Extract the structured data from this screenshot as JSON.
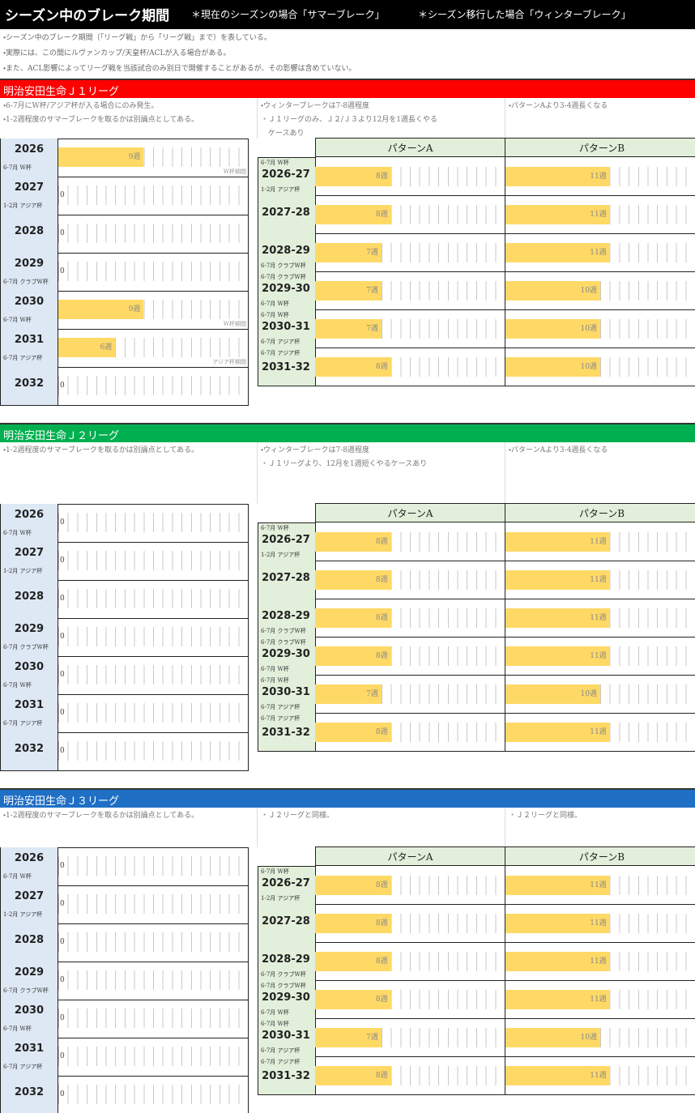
{
  "header": {
    "title": "シーズン中のブレーク期間",
    "notes": [
      "＊現在のシーズンの場合「サマーブレーク」",
      "＊シーズン移行した場合「ウィンターブレーク」"
    ]
  },
  "intro": [
    "・シーズン中のブレーク期間（「リーグ戦」から「リーグ戦」まで）を表している。",
    "・実際には、この間にルヴァンカップ/天皇杯/ACLが入る場合がある。",
    "・また、ACL影響によってリーグ戦を当該試合のみ別日で開催することがあるが、その影響は含めていない。"
  ],
  "sections": [
    {
      "title": "明治安田生命Ｊ１リーグ",
      "notes_left": [
        "・6-7月にW杯/アジア杯が入る場合にのみ発生。",
        "・1-2週程度のサマーブレークを取るかは別論点としてある。"
      ],
      "notes_mid": [
        "・ウィンターブレークは7-8週程度",
        "・Ｊ１リーグのみ、Ｊ２/Ｊ３より12月を1週長くやる",
        "　ケースあり"
      ],
      "notes_right": [
        "・パターンAより3-4週長くなる"
      ],
      "summer": [
        {
          "year": "2026",
          "sub": "6-7月 W杯",
          "value": 9,
          "value_label": "9週",
          "below": "W杯期間"
        },
        {
          "year": "2027",
          "sub": "1-2月 アジア杯",
          "value": 0
        },
        {
          "year": "2028",
          "value": 0
        },
        {
          "year": "2029",
          "sub": "6-7月 クラブW杯",
          "value": 0
        },
        {
          "year": "2030",
          "sub": "6-7月 W杯",
          "value": 9,
          "value_label": "9週",
          "below": "W杯期間"
        },
        {
          "year": "2031",
          "sub": "6-7月 アジア杯",
          "value": 6,
          "value_label": "6週",
          "below": "アジア杯期間"
        },
        {
          "year": "2032",
          "value": 0
        }
      ],
      "winter": {
        "headers": [
          "パターンA",
          "パターンB"
        ],
        "rows": [
          {
            "top": "6-7月 W杯",
            "season": "2026-27",
            "sub": "1-2月 アジア杯",
            "a": 8,
            "a_label": "8週",
            "b": 11,
            "b_label": "11週"
          },
          {
            "season": "2027-28",
            "a": 8,
            "a_label": "8週",
            "b": 11,
            "b_label": "11週"
          },
          {
            "season": "2028-29",
            "sub": "6-7月 クラブW杯",
            "a": 7,
            "a_label": "7週",
            "b": 11,
            "b_label": "11週"
          },
          {
            "top": "6-7月 クラブW杯",
            "season": "2029-30",
            "sub": "6-7月 W杯",
            "a": 7,
            "a_label": "7週",
            "b": 10,
            "b_label": "10週"
          },
          {
            "top": "6-7月 W杯",
            "season": "2030-31",
            "sub": "6-7月 アジア杯",
            "a": 7,
            "a_label": "7週",
            "b": 10,
            "b_label": "10週"
          },
          {
            "top": "6-7月 アジア杯",
            "season": "2031-32",
            "a": 8,
            "a_label": "8週",
            "b": 10,
            "b_label": "10週"
          }
        ]
      }
    },
    {
      "title": "明治安田生命Ｊ２リーグ",
      "notes_left": [
        "・1-2週程度のサマーブレークを取るかは別論点としてある。"
      ],
      "notes_mid": [
        "・ウィンターブレークは7-8週程度",
        "・Ｊ１リーグより、12月を1週短くやるケースあり"
      ],
      "notes_right": [
        "・パターンAより3-4週長くなる"
      ],
      "summer": [
        {
          "year": "2026",
          "sub": "6-7月 W杯",
          "value": 0
        },
        {
          "year": "2027",
          "sub": "1-2月 アジア杯",
          "value": 0
        },
        {
          "year": "2028",
          "value": 0
        },
        {
          "year": "2029",
          "sub": "6-7月 クラブW杯",
          "value": 0
        },
        {
          "year": "2030",
          "sub": "6-7月 W杯",
          "value": 0
        },
        {
          "year": "2031",
          "sub": "6-7月 アジア杯",
          "value": 0
        },
        {
          "year": "2032",
          "value": 0
        }
      ],
      "winter": {
        "headers": [
          "パターンA",
          "パターンB"
        ],
        "rows": [
          {
            "top": "6-7月 W杯",
            "season": "2026-27",
            "sub": "1-2月 アジア杯",
            "a": 8,
            "a_label": "8週",
            "b": 11,
            "b_label": "11週"
          },
          {
            "season": "2027-28",
            "a": 8,
            "a_label": "8週",
            "b": 11,
            "b_label": "11週"
          },
          {
            "season": "2028-29",
            "sub": "6-7月 クラブW杯",
            "a": 8,
            "a_label": "8週",
            "b": 11,
            "b_label": "11週"
          },
          {
            "top": "6-7月 クラブW杯",
            "season": "2029-30",
            "sub": "6-7月 W杯",
            "a": 8,
            "a_label": "8週",
            "b": 11,
            "b_label": "11週"
          },
          {
            "top": "6-7月 W杯",
            "season": "2030-31",
            "sub": "6-7月 アジア杯",
            "a": 7,
            "a_label": "7週",
            "b": 10,
            "b_label": "10週"
          },
          {
            "top": "6-7月 アジア杯",
            "season": "2031-32",
            "a": 8,
            "a_label": "8週",
            "b": 11,
            "b_label": "11週"
          }
        ]
      }
    },
    {
      "title": "明治安田生命Ｊ３リーグ",
      "notes_left": [
        "・1-2週程度のサマーブレークを取るかは別論点としてある。"
      ],
      "notes_mid": [
        "・Ｊ２リーグと同様。"
      ],
      "notes_right": [
        "・Ｊ２リーグと同様。"
      ],
      "summer": [
        {
          "year": "2026",
          "sub": "6-7月 W杯",
          "value": 0
        },
        {
          "year": "2027",
          "sub": "1-2月 アジア杯",
          "value": 0
        },
        {
          "year": "2028",
          "value": 0
        },
        {
          "year": "2029",
          "sub": "6-7月 クラブW杯",
          "value": 0
        },
        {
          "year": "2030",
          "sub": "6-7月 W杯",
          "value": 0
        },
        {
          "year": "2031",
          "sub": "6-7月 アジア杯",
          "value": 0
        },
        {
          "year": "2032",
          "value": 0
        }
      ],
      "winter": {
        "headers": [
          "パターンA",
          "パターンB"
        ],
        "rows": [
          {
            "top": "6-7月 W杯",
            "season": "2026-27",
            "sub": "1-2月 アジア杯",
            "a": 8,
            "a_label": "8週",
            "b": 11,
            "b_label": "11週"
          },
          {
            "season": "2027-28",
            "a": 8,
            "a_label": "8週",
            "b": 11,
            "b_label": "11週"
          },
          {
            "season": "2028-29",
            "sub": "6-7月 クラブW杯",
            "a": 8,
            "a_label": "8週",
            "b": 11,
            "b_label": "11週"
          },
          {
            "top": "6-7月 クラブW杯",
            "season": "2029-30",
            "sub": "6-7月 W杯",
            "a": 8,
            "a_label": "8週",
            "b": 11,
            "b_label": "11週"
          },
          {
            "top": "6-7月 W杯",
            "season": "2030-31",
            "sub": "6-7月 アジア杯",
            "a": 7,
            "a_label": "7週",
            "b": 10,
            "b_label": "10週"
          },
          {
            "top": "6-7月 アジア杯",
            "season": "2031-32",
            "a": 8,
            "a_label": "8週",
            "b": 11,
            "b_label": "11週"
          }
        ]
      }
    }
  ]
}
